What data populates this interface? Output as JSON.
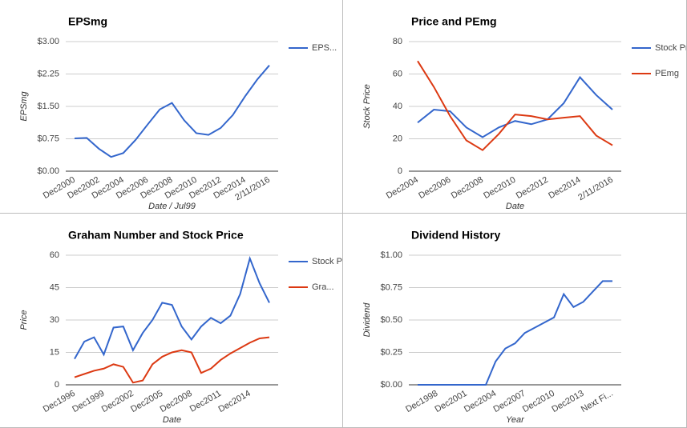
{
  "chart_data": [
    {
      "type": "line",
      "title": "EPSmg",
      "x_label": "Date / Jul99",
      "y_label": "EPSmg",
      "categories": [
        "Dec2000",
        null,
        "Dec2002",
        null,
        "Dec2004",
        null,
        "Dec2006",
        null,
        "Dec2008",
        null,
        "Dec2010",
        null,
        "Dec2012",
        null,
        "Dec2014",
        null,
        "2/11/2016"
      ],
      "series": [
        {
          "name": "EPS...",
          "color": "#3366cc",
          "values": [
            0.76,
            0.77,
            0.52,
            0.33,
            0.42,
            0.72,
            1.08,
            1.43,
            1.58,
            1.18,
            0.88,
            0.84,
            1.0,
            1.3,
            1.73,
            2.12,
            2.45
          ]
        }
      ],
      "ylim": [
        0,
        3
      ],
      "yticks": [
        {
          "value": 0,
          "label": "$0.00"
        },
        {
          "value": 0.75,
          "label": "$0.75"
        },
        {
          "value": 1.5,
          "label": "$1.50"
        },
        {
          "value": 2.25,
          "label": "$2.25"
        },
        {
          "value": 3,
          "label": "$3.00"
        }
      ],
      "grid": true,
      "legend": "right"
    },
    {
      "type": "line",
      "title": "Price and PEmg",
      "x_label": "Date",
      "y_label": "Stock Price",
      "categories": [
        "Dec2004",
        null,
        "Dec2006",
        null,
        "Dec2008",
        null,
        "Dec2010",
        null,
        "Dec2012",
        null,
        "Dec2014",
        null,
        "2/11/2016"
      ],
      "series": [
        {
          "name": "Stock Price",
          "color": "#3366cc",
          "values": [
            30,
            38,
            37,
            27,
            21,
            27,
            31,
            29,
            32,
            42,
            58,
            47,
            38
          ]
        },
        {
          "name": "PEmg",
          "color": "#dc3912",
          "values": [
            68,
            52,
            34,
            19,
            13,
            23,
            35,
            34,
            32,
            33,
            34,
            22,
            16
          ]
        }
      ],
      "ylim": [
        0,
        80
      ],
      "yticks": [
        0,
        20,
        40,
        60,
        80
      ],
      "grid": true,
      "legend": "right"
    },
    {
      "type": "line",
      "title": "Graham Number and Stock Price",
      "x_label": "Date",
      "y_label": "Price",
      "categories": [
        "Dec1996",
        null,
        null,
        "Dec1999",
        null,
        null,
        "Dec2002",
        null,
        null,
        "Dec2005",
        null,
        null,
        "Dec2008",
        null,
        null,
        "Dec2011",
        null,
        null,
        "Dec2014",
        null,
        null
      ],
      "series": [
        {
          "name": "Stock Price",
          "color": "#3366cc",
          "values": [
            12,
            20,
            22,
            14,
            26.5,
            27,
            16,
            24,
            30,
            38,
            37,
            27,
            21,
            27,
            31,
            28.5,
            32,
            42,
            58.5,
            47,
            38
          ]
        },
        {
          "name": "Gra...",
          "color": "#dc3912",
          "values": [
            3.5,
            5,
            6.5,
            7.5,
            9.5,
            8.3,
            1,
            2,
            9.5,
            13,
            15,
            16,
            15,
            5.5,
            7.5,
            11.5,
            14.5,
            17,
            19.5,
            21.5,
            22
          ]
        }
      ],
      "ylim": [
        0,
        60
      ],
      "yticks": [
        0,
        15,
        30,
        45,
        60
      ],
      "grid": true,
      "legend": "right"
    },
    {
      "type": "line",
      "title": "Dividend History",
      "x_label": "Year",
      "y_label": "Dividend",
      "categories": [
        null,
        null,
        "Dec1998",
        null,
        null,
        "Dec2001",
        null,
        null,
        "Dec2004",
        null,
        null,
        "Dec2007",
        null,
        null,
        "Dec2010",
        null,
        null,
        "Dec2013",
        null,
        null,
        "Next Fi..."
      ],
      "series": [
        {
          "name": "Dividend",
          "color": "#3366cc",
          "values": [
            0,
            0,
            0,
            0,
            0,
            0,
            0,
            0,
            0.18,
            0.28,
            0.32,
            0.4,
            0.44,
            0.48,
            0.52,
            0.7,
            0.6,
            0.64,
            0.72,
            0.8,
            0.8
          ]
        }
      ],
      "ylim": [
        0,
        1
      ],
      "yticks": [
        {
          "value": 0,
          "label": "$0.00"
        },
        {
          "value": 0.25,
          "label": "$0.25"
        },
        {
          "value": 0.5,
          "label": "$0.50"
        },
        {
          "value": 0.75,
          "label": "$0.75"
        },
        {
          "value": 1,
          "label": "$1.00"
        }
      ],
      "grid": true,
      "legend": "none"
    }
  ]
}
